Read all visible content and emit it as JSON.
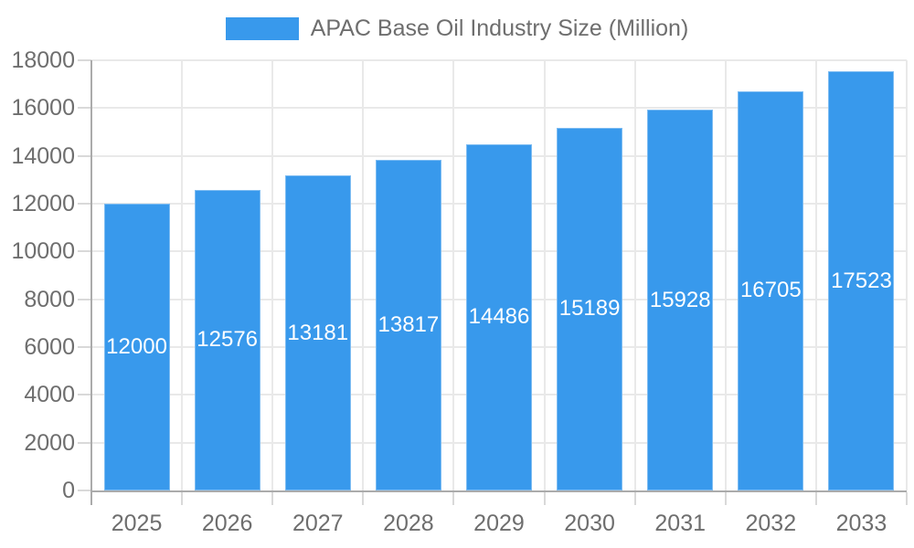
{
  "legend": {
    "label": "APAC Base Oil Industry Size (Million)"
  },
  "chart_data": {
    "type": "bar",
    "title": "APAC Base Oil Industry Size (Million)",
    "series_name": "APAC Base Oil Industry Size (Million)",
    "categories": [
      "2025",
      "2026",
      "2027",
      "2028",
      "2029",
      "2030",
      "2031",
      "2032",
      "2033"
    ],
    "values": [
      12000,
      12576,
      13181,
      13817,
      14486,
      15189,
      15928,
      16705,
      17523
    ],
    "bar_value_labels": [
      "12000",
      "12576",
      "13181",
      "13817",
      "14486",
      "15189",
      "15928",
      "16705",
      "17523"
    ],
    "xlabel": "",
    "ylabel": "",
    "ylim": [
      0,
      18000
    ],
    "ytick_step": 2000,
    "yticks": [
      0,
      2000,
      4000,
      6000,
      8000,
      10000,
      12000,
      14000,
      16000,
      18000
    ],
    "grid": true,
    "legend_position": "top-center",
    "bar_label_position": "inside-center"
  },
  "colors": {
    "bar": "#3899EC",
    "bar_label": "#ffffff",
    "grid": "#e9e9e9",
    "axis": "#ababab",
    "tick": "#d9d9d9",
    "text": "#6e6e6e",
    "background": "#ffffff"
  }
}
